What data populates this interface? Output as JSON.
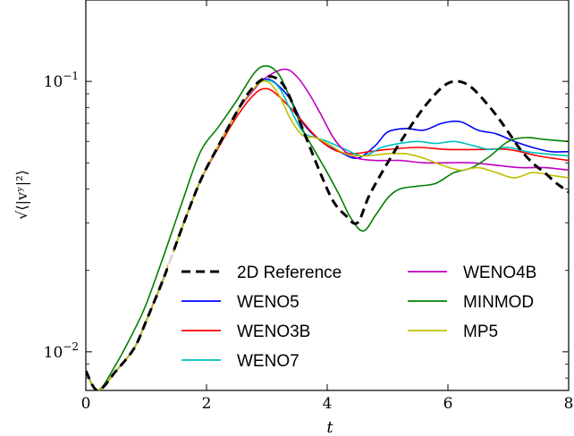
{
  "chart_data": {
    "type": "line",
    "title": "",
    "xlabel": "t",
    "ylabel": "√⟨|vʸ|²⟩",
    "xlim": [
      0,
      8
    ],
    "ylim": [
      0.0072,
      0.2
    ],
    "yscale": "log",
    "grid": false,
    "legend_position": "lower-center",
    "x_ticks": [
      {
        "value": 0,
        "label": "0"
      },
      {
        "value": 2,
        "label": "2"
      },
      {
        "value": 4,
        "label": "4"
      },
      {
        "value": 6,
        "label": "6"
      },
      {
        "value": 8,
        "label": "8"
      }
    ],
    "y_ticks": [
      {
        "value": 0.01,
        "base": "10",
        "exp": "−2"
      },
      {
        "value": 0.1,
        "base": "10",
        "exp": "−1"
      }
    ],
    "series": [
      {
        "name": "2D Reference",
        "color": "#000000",
        "dash": true,
        "points": [
          [
            0,
            0.0085
          ],
          [
            0.2,
            0.0072
          ],
          [
            0.5,
            0.0085
          ],
          [
            0.8,
            0.0103
          ],
          [
            1.0,
            0.013
          ],
          [
            1.3,
            0.019
          ],
          [
            1.6,
            0.029
          ],
          [
            1.9,
            0.043
          ],
          [
            2.2,
            0.058
          ],
          [
            2.5,
            0.077
          ],
          [
            2.7,
            0.091
          ],
          [
            2.9,
            0.101
          ],
          [
            3.1,
            0.104
          ],
          [
            3.3,
            0.095
          ],
          [
            3.5,
            0.075
          ],
          [
            3.7,
            0.058
          ],
          [
            3.9,
            0.045
          ],
          [
            4.1,
            0.036
          ],
          [
            4.3,
            0.032
          ],
          [
            4.5,
            0.03
          ],
          [
            4.7,
            0.038
          ],
          [
            5.0,
            0.05
          ],
          [
            5.3,
            0.064
          ],
          [
            5.6,
            0.08
          ],
          [
            5.9,
            0.095
          ],
          [
            6.1,
            0.1
          ],
          [
            6.3,
            0.098
          ],
          [
            6.5,
            0.09
          ],
          [
            6.8,
            0.075
          ],
          [
            7.0,
            0.065
          ],
          [
            7.2,
            0.056
          ],
          [
            7.4,
            0.05
          ],
          [
            7.6,
            0.046
          ],
          [
            7.8,
            0.042
          ],
          [
            8.0,
            0.039
          ]
        ]
      },
      {
        "name": "WENO5",
        "color": "#0000ff",
        "dash": false,
        "points": [
          [
            0,
            0.0085
          ],
          [
            0.2,
            0.0072
          ],
          [
            0.5,
            0.0085
          ],
          [
            0.8,
            0.0103
          ],
          [
            1.0,
            0.013
          ],
          [
            1.3,
            0.019
          ],
          [
            1.6,
            0.029
          ],
          [
            1.9,
            0.043
          ],
          [
            2.2,
            0.058
          ],
          [
            2.5,
            0.077
          ],
          [
            2.8,
            0.095
          ],
          [
            3.0,
            0.102
          ],
          [
            3.2,
            0.096
          ],
          [
            3.4,
            0.085
          ],
          [
            3.6,
            0.07
          ],
          [
            3.9,
            0.06
          ],
          [
            4.2,
            0.055
          ],
          [
            4.5,
            0.052
          ],
          [
            4.8,
            0.058
          ],
          [
            5.0,
            0.065
          ],
          [
            5.3,
            0.067
          ],
          [
            5.6,
            0.066
          ],
          [
            5.9,
            0.07
          ],
          [
            6.2,
            0.071
          ],
          [
            6.5,
            0.066
          ],
          [
            6.8,
            0.064
          ],
          [
            7.1,
            0.06
          ],
          [
            7.4,
            0.057
          ],
          [
            7.7,
            0.055
          ],
          [
            8.0,
            0.055
          ]
        ]
      },
      {
        "name": "WENO3B",
        "color": "#ff0000",
        "dash": false,
        "points": [
          [
            0,
            0.0085
          ],
          [
            0.2,
            0.0072
          ],
          [
            0.5,
            0.0085
          ],
          [
            0.8,
            0.0103
          ],
          [
            1.0,
            0.013
          ],
          [
            1.3,
            0.019
          ],
          [
            1.6,
            0.029
          ],
          [
            1.9,
            0.043
          ],
          [
            2.2,
            0.057
          ],
          [
            2.5,
            0.074
          ],
          [
            2.8,
            0.09
          ],
          [
            3.0,
            0.094
          ],
          [
            3.2,
            0.088
          ],
          [
            3.5,
            0.075
          ],
          [
            3.8,
            0.063
          ],
          [
            4.1,
            0.056
          ],
          [
            4.4,
            0.054
          ],
          [
            4.7,
            0.055
          ],
          [
            5.0,
            0.056
          ],
          [
            5.5,
            0.057
          ],
          [
            6.0,
            0.056
          ],
          [
            6.5,
            0.056
          ],
          [
            7.0,
            0.056
          ],
          [
            7.5,
            0.053
          ],
          [
            8.0,
            0.051
          ]
        ]
      },
      {
        "name": "WENO7",
        "color": "#00bfbf",
        "dash": false,
        "points": [
          [
            0,
            0.0085
          ],
          [
            0.2,
            0.0072
          ],
          [
            0.5,
            0.0085
          ],
          [
            0.8,
            0.0103
          ],
          [
            1.0,
            0.013
          ],
          [
            1.3,
            0.019
          ],
          [
            1.6,
            0.029
          ],
          [
            1.9,
            0.043
          ],
          [
            2.2,
            0.058
          ],
          [
            2.5,
            0.077
          ],
          [
            2.8,
            0.095
          ],
          [
            3.0,
            0.101
          ],
          [
            3.2,
            0.095
          ],
          [
            3.4,
            0.078
          ],
          [
            3.6,
            0.065
          ],
          [
            3.8,
            0.062
          ],
          [
            4.0,
            0.06
          ],
          [
            4.3,
            0.056
          ],
          [
            4.6,
            0.053
          ],
          [
            4.9,
            0.057
          ],
          [
            5.2,
            0.059
          ],
          [
            5.5,
            0.06
          ],
          [
            5.8,
            0.059
          ],
          [
            6.1,
            0.06
          ],
          [
            6.4,
            0.058
          ],
          [
            6.7,
            0.056
          ],
          [
            7.0,
            0.057
          ],
          [
            7.3,
            0.055
          ],
          [
            7.6,
            0.054
          ],
          [
            8.0,
            0.053
          ]
        ]
      },
      {
        "name": "WENO4B",
        "color": "#bf00bf",
        "dash": false,
        "points": [
          [
            0,
            0.0085
          ],
          [
            0.2,
            0.0072
          ],
          [
            0.5,
            0.0085
          ],
          [
            0.8,
            0.0103
          ],
          [
            1.0,
            0.013
          ],
          [
            1.3,
            0.019
          ],
          [
            1.6,
            0.029
          ],
          [
            1.9,
            0.043
          ],
          [
            2.2,
            0.058
          ],
          [
            2.5,
            0.077
          ],
          [
            2.8,
            0.094
          ],
          [
            3.0,
            0.104
          ],
          [
            3.3,
            0.111
          ],
          [
            3.5,
            0.104
          ],
          [
            3.7,
            0.09
          ],
          [
            3.9,
            0.075
          ],
          [
            4.1,
            0.062
          ],
          [
            4.3,
            0.055
          ],
          [
            4.5,
            0.052
          ],
          [
            4.8,
            0.051
          ],
          [
            5.2,
            0.051
          ],
          [
            5.6,
            0.05
          ],
          [
            6.0,
            0.05
          ],
          [
            6.4,
            0.05
          ],
          [
            6.8,
            0.049
          ],
          [
            7.2,
            0.048
          ],
          [
            7.6,
            0.048
          ],
          [
            8.0,
            0.047
          ]
        ]
      },
      {
        "name": "MINMOD",
        "color": "#008000",
        "dash": false,
        "points": [
          [
            0,
            0.0085
          ],
          [
            0.2,
            0.0072
          ],
          [
            0.5,
            0.009
          ],
          [
            0.8,
            0.012
          ],
          [
            1.0,
            0.015
          ],
          [
            1.3,
            0.023
          ],
          [
            1.6,
            0.036
          ],
          [
            1.9,
            0.055
          ],
          [
            2.2,
            0.068
          ],
          [
            2.5,
            0.085
          ],
          [
            2.8,
            0.108
          ],
          [
            3.0,
            0.114
          ],
          [
            3.2,
            0.106
          ],
          [
            3.4,
            0.085
          ],
          [
            3.6,
            0.066
          ],
          [
            3.8,
            0.055
          ],
          [
            4.0,
            0.046
          ],
          [
            4.2,
            0.038
          ],
          [
            4.4,
            0.031
          ],
          [
            4.6,
            0.028
          ],
          [
            4.8,
            0.032
          ],
          [
            5.0,
            0.037
          ],
          [
            5.2,
            0.04
          ],
          [
            5.5,
            0.041
          ],
          [
            5.8,
            0.042
          ],
          [
            6.1,
            0.046
          ],
          [
            6.4,
            0.048
          ],
          [
            6.7,
            0.053
          ],
          [
            7.0,
            0.06
          ],
          [
            7.3,
            0.062
          ],
          [
            7.6,
            0.061
          ],
          [
            8.0,
            0.06
          ]
        ]
      },
      {
        "name": "MP5",
        "color": "#bfbf00",
        "dash": false,
        "points": [
          [
            0,
            0.0085
          ],
          [
            0.2,
            0.0072
          ],
          [
            0.5,
            0.0085
          ],
          [
            0.8,
            0.0103
          ],
          [
            1.0,
            0.013
          ],
          [
            1.3,
            0.019
          ],
          [
            1.6,
            0.029
          ],
          [
            1.9,
            0.043
          ],
          [
            2.2,
            0.058
          ],
          [
            2.5,
            0.077
          ],
          [
            2.8,
            0.095
          ],
          [
            3.0,
            0.1
          ],
          [
            3.2,
            0.089
          ],
          [
            3.4,
            0.072
          ],
          [
            3.6,
            0.063
          ],
          [
            3.8,
            0.062
          ],
          [
            4.0,
            0.059
          ],
          [
            4.3,
            0.054
          ],
          [
            4.6,
            0.053
          ],
          [
            5.0,
            0.054
          ],
          [
            5.3,
            0.054
          ],
          [
            5.6,
            0.052
          ],
          [
            5.9,
            0.049
          ],
          [
            6.2,
            0.047
          ],
          [
            6.5,
            0.048
          ],
          [
            6.8,
            0.046
          ],
          [
            7.1,
            0.044
          ],
          [
            7.4,
            0.046
          ],
          [
            7.7,
            0.045
          ],
          [
            8.0,
            0.044
          ]
        ]
      }
    ]
  }
}
